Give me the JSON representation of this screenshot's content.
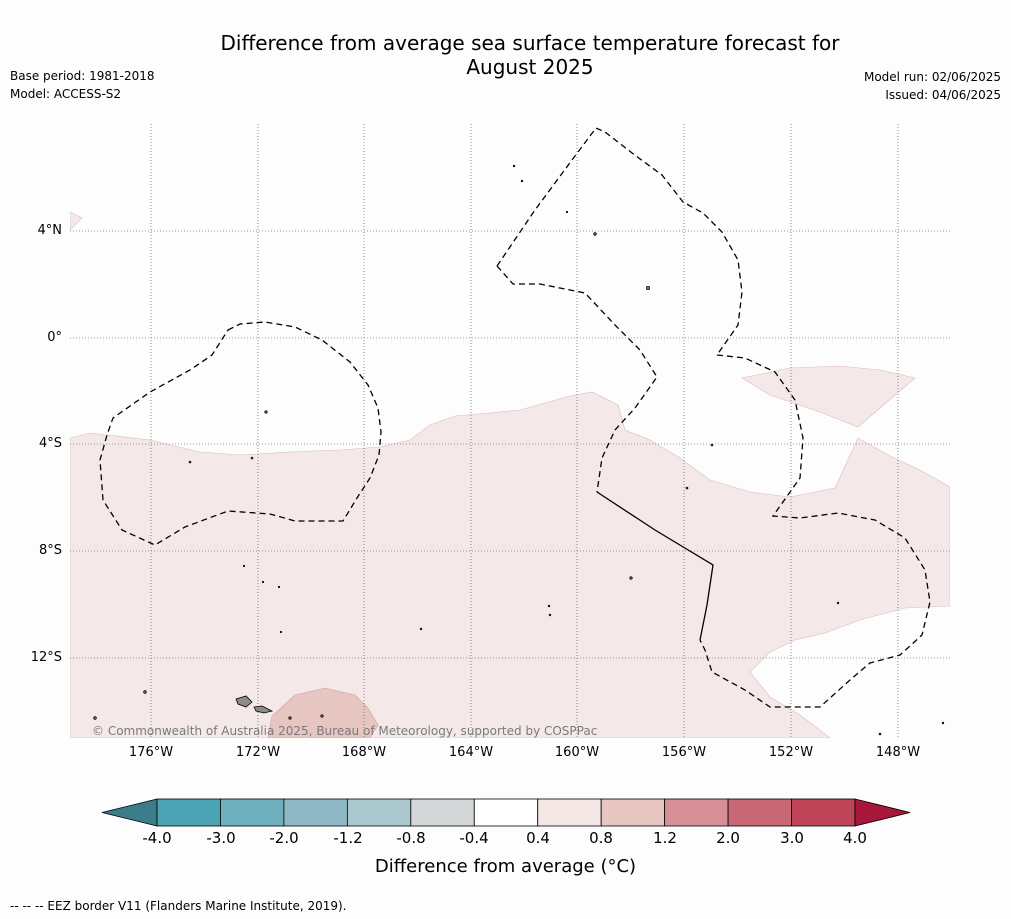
{
  "title_line1": "Difference from average sea surface temperature forecast for",
  "title_line2": "August 2025",
  "base_period": "Base period: 1981-2018",
  "model": "Model: ACCESS-S2",
  "model_run": "Model run: 02/06/2025",
  "issued": "Issued: 04/06/2025",
  "lat_labels": [
    "4°N",
    "0°",
    "4°S",
    "8°S",
    "12°S"
  ],
  "lon_labels": [
    "176°W",
    "172°W",
    "168°W",
    "164°W",
    "160°W",
    "156°W",
    "152°W",
    "148°W"
  ],
  "copyright": "© Commonwealth of Australia 2025, Bureau of Meteorology, supported by COSPPac",
  "colorbar": {
    "ticks": [
      "-4.0",
      "-3.0",
      "-2.0",
      "-1.2",
      "-0.8",
      "-0.4",
      "0.4",
      "0.8",
      "1.2",
      "2.0",
      "3.0",
      "4.0"
    ],
    "colors": [
      "#3b7e89",
      "#4aa4b3",
      "#6eb0bd",
      "#8eb9c4",
      "#abc8ce",
      "#d4d8d8",
      "#ffffff",
      "#f4e6e4",
      "#e7c5c0",
      "#d68f96",
      "#c86876",
      "#be4658",
      "#a8173a"
    ],
    "label": "Difference from average (°C)"
  },
  "footnote": "--  --  -- EEZ border V11 (Flanders Marine Institute, 2019).",
  "colors": {
    "anomaly_04_08": "#f4e9e8",
    "anomaly_08_12": "#e7c5c0",
    "land": "#8c8c8c"
  }
}
